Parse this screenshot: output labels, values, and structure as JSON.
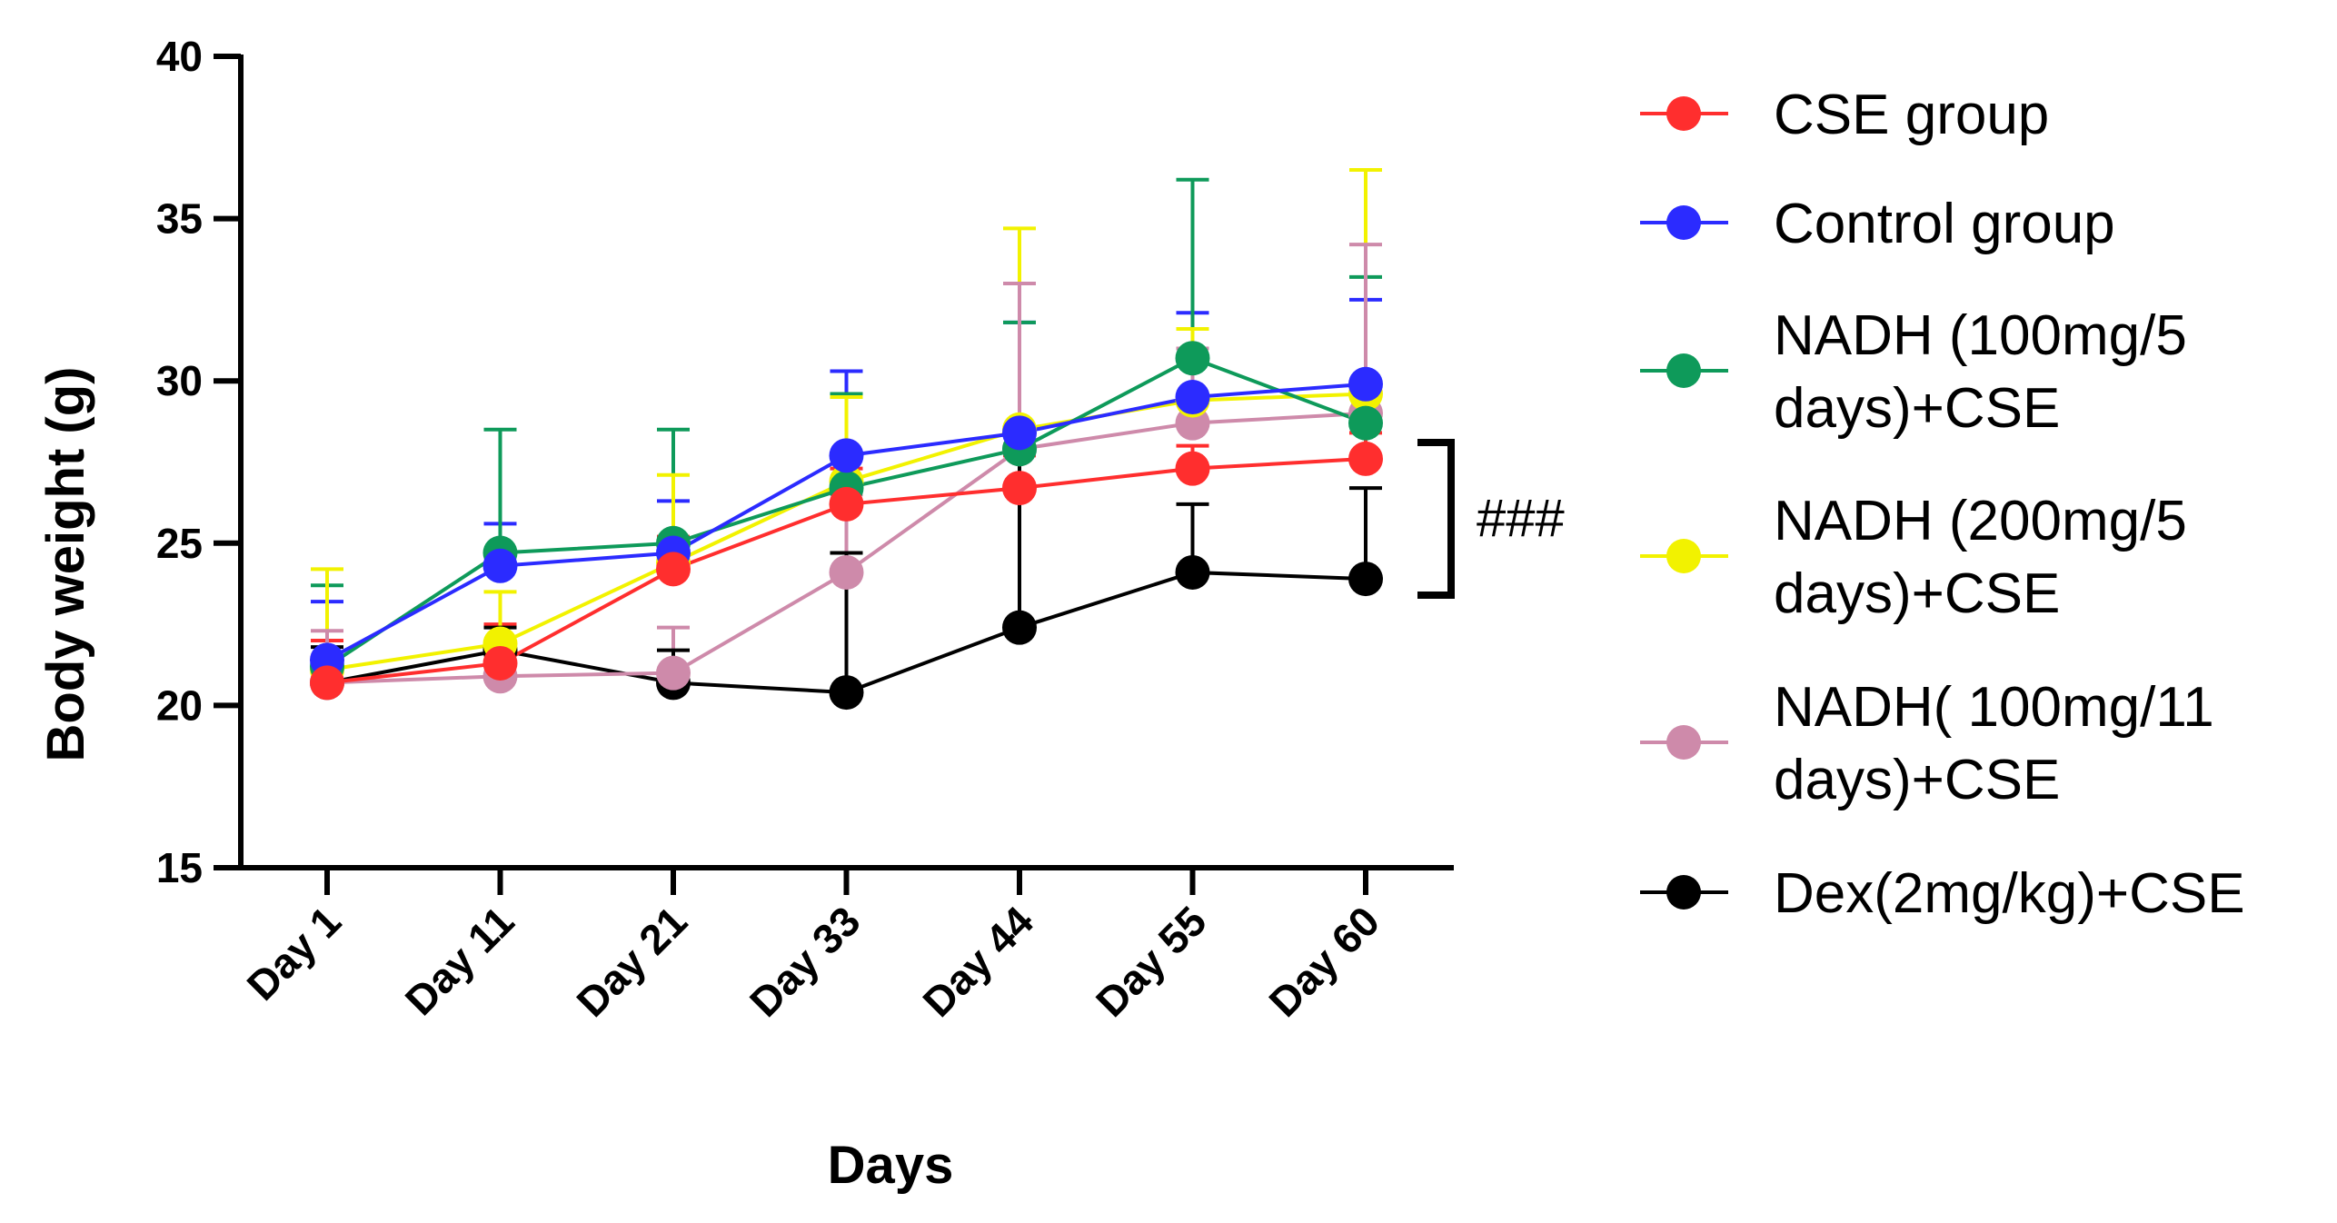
{
  "chart_data": {
    "type": "line",
    "title": "",
    "xlabel": "Days",
    "ylabel": "Body weight (g)",
    "categories": [
      "Day 1",
      "Day 11",
      "Day 21",
      "Day 33",
      "Day 44",
      "Day 55",
      "Day 60"
    ],
    "ylim": [
      15,
      40
    ],
    "yticks": [
      "15",
      "20",
      "25",
      "30",
      "35",
      "40"
    ],
    "grid": false,
    "legend_position": "right",
    "series": [
      {
        "name": "CSE group",
        "color": "#FF2E2E",
        "values": [
          20.7,
          21.3,
          24.2,
          26.2,
          26.7,
          27.3,
          27.6
        ],
        "errors": [
          1.3,
          1.2,
          1.0,
          1.1,
          1.0,
          0.7,
          0.8
        ]
      },
      {
        "name": "Control group",
        "color": "#2B2BFF",
        "values": [
          21.4,
          24.3,
          24.7,
          27.7,
          28.4,
          29.5,
          29.9
        ],
        "errors": [
          1.8,
          1.3,
          1.6,
          2.6,
          3.4,
          2.6,
          2.6
        ]
      },
      {
        "name": "NADH (100mg/5 days)+CSE",
        "color": "#0E9A5A",
        "values": [
          21.2,
          24.7,
          25.0,
          26.7,
          27.9,
          30.7,
          28.7
        ],
        "errors": [
          2.5,
          3.8,
          3.5,
          2.9,
          3.9,
          5.5,
          4.5
        ]
      },
      {
        "name": "NADH (200mg/5 days)+CSE",
        "color": "#F2F200",
        "values": [
          21.1,
          21.9,
          24.4,
          26.9,
          28.5,
          29.4,
          29.6
        ],
        "errors": [
          3.1,
          1.6,
          2.7,
          2.6,
          6.2,
          2.2,
          6.9
        ]
      },
      {
        "name": "NADH( 100mg/11 days)+CSE",
        "color": "#CE8AAA",
        "values": [
          20.7,
          20.9,
          21.0,
          24.1,
          27.9,
          28.7,
          29.0
        ],
        "errors": [
          1.6,
          0.9,
          1.4,
          2.4,
          5.1,
          2.3,
          5.2
        ]
      },
      {
        "name": "Dex(2mg/kg)+CSE",
        "color": "#000000",
        "values": [
          20.7,
          21.7,
          20.7,
          20.4,
          22.4,
          24.1,
          23.9
        ],
        "errors": [
          1.1,
          0.7,
          1.0,
          4.3,
          6.1,
          2.1,
          2.8
        ]
      }
    ],
    "legend": [
      [
        "CSE group"
      ],
      [
        "Control group"
      ],
      [
        "NADH (100mg/5",
        "days)+CSE"
      ],
      [
        "NADH (200mg/5",
        "days)+CSE"
      ],
      [
        "NADH( 100mg/11",
        "days)+CSE"
      ],
      [
        "Dex(2mg/kg)+CSE"
      ]
    ],
    "annotation": "###"
  }
}
